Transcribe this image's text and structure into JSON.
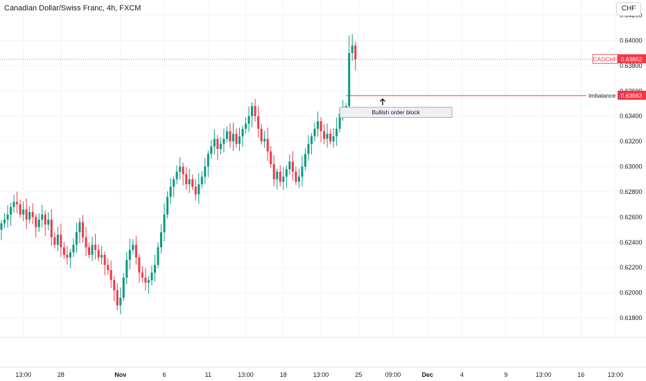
{
  "header": {
    "symbol_title": "Canadian Dollar/Swiss Franc, 4h, FXCM",
    "currency_button": "CHF"
  },
  "colors": {
    "up": "#089981",
    "down": "#f23645",
    "grid": "#f0f3fa",
    "price_line": "#f23645",
    "imbalance_line": "#f23645",
    "box_fill": "#eef0f3",
    "box_border": "#9598a1"
  },
  "chart_data": {
    "type": "candlestick",
    "symbol": "CADCHF",
    "interval": "4h",
    "ylim": [
      0.6168,
      0.6423
    ],
    "y_ticks": [
      0.618,
      0.62,
      0.622,
      0.624,
      0.626,
      0.628,
      0.63,
      0.632,
      0.634,
      0.636,
      0.638,
      0.64,
      0.642
    ],
    "y_tick_labels": [
      "0.61800",
      "0.62000",
      "0.62200",
      "0.62400",
      "0.62600",
      "0.62800",
      "0.63000",
      "0.63200",
      "0.63400",
      "0.63600",
      "0.63800",
      "0.64000",
      "0.64200"
    ],
    "x_ticks": [
      {
        "label": "13:00",
        "bold": false,
        "bar": 7
      },
      {
        "label": "28",
        "bold": false,
        "bar": 19
      },
      {
        "label": "Nov",
        "bold": true,
        "bar": 38
      },
      {
        "label": "6",
        "bold": false,
        "bar": 52
      },
      {
        "label": "11",
        "bold": false,
        "bar": 66
      },
      {
        "label": "13:00",
        "bold": false,
        "bar": 78
      },
      {
        "label": "18",
        "bold": false,
        "bar": 90
      },
      {
        "label": "13:00",
        "bold": false,
        "bar": 102
      },
      {
        "label": "25",
        "bold": false,
        "bar": 114
      },
      {
        "label": "09:00",
        "bold": false,
        "bar": 125
      },
      {
        "label": "Dec",
        "bold": true,
        "bar": 136
      },
      {
        "label": "4",
        "bold": false,
        "bar": 147
      },
      {
        "label": "9",
        "bold": false,
        "bar": 161
      },
      {
        "label": "13:00",
        "bold": false,
        "bar": 173
      },
      {
        "label": "16",
        "bold": false,
        "bar": 185
      },
      {
        "label": "13:00",
        "bold": false,
        "bar": 196
      }
    ],
    "closes": [
      0.6255,
      0.6258,
      0.6262,
      0.6268,
      0.6272,
      0.627,
      0.6262,
      0.6266,
      0.6258,
      0.6264,
      0.626,
      0.6252,
      0.6258,
      0.6262,
      0.6254,
      0.6258,
      0.6244,
      0.6238,
      0.6246,
      0.6236,
      0.623,
      0.6228,
      0.6232,
      0.6238,
      0.6248,
      0.6256,
      0.6244,
      0.6236,
      0.623,
      0.6238,
      0.6234,
      0.6228,
      0.623,
      0.6222,
      0.6218,
      0.621,
      0.6202,
      0.619,
      0.6196,
      0.6212,
      0.6226,
      0.6234,
      0.6238,
      0.6228,
      0.6216,
      0.6212,
      0.6208,
      0.621,
      0.6216,
      0.6222,
      0.6236,
      0.6248,
      0.6262,
      0.6276,
      0.6284,
      0.629,
      0.6296,
      0.63,
      0.6294,
      0.6286,
      0.629,
      0.6284,
      0.6278,
      0.6286,
      0.6292,
      0.63,
      0.631,
      0.6316,
      0.6322,
      0.6314,
      0.6318,
      0.6322,
      0.6328,
      0.632,
      0.6326,
      0.6318,
      0.6324,
      0.633,
      0.6334,
      0.634,
      0.6348,
      0.634,
      0.633,
      0.632,
      0.6322,
      0.6312,
      0.6302,
      0.629,
      0.6296,
      0.6288,
      0.6292,
      0.6298,
      0.6304,
      0.6296,
      0.6288,
      0.6292,
      0.63,
      0.631,
      0.6318,
      0.6324,
      0.633,
      0.6336,
      0.6328,
      0.6322,
      0.6326,
      0.632,
      0.6324,
      0.633,
      0.6342,
      0.6346,
      0.6348,
      0.639,
      0.6396,
      0.6385
    ],
    "current_price": {
      "symbol": "CADCHF",
      "label": "0.63852",
      "value": 0.63852
    },
    "annotations": {
      "imbalance": {
        "text": "Imbalance",
        "label": "0.63563",
        "value": 0.63563
      },
      "order_block": {
        "text": "Bullish order block",
        "top": 0.6347,
        "bottom": 0.6339
      }
    }
  }
}
